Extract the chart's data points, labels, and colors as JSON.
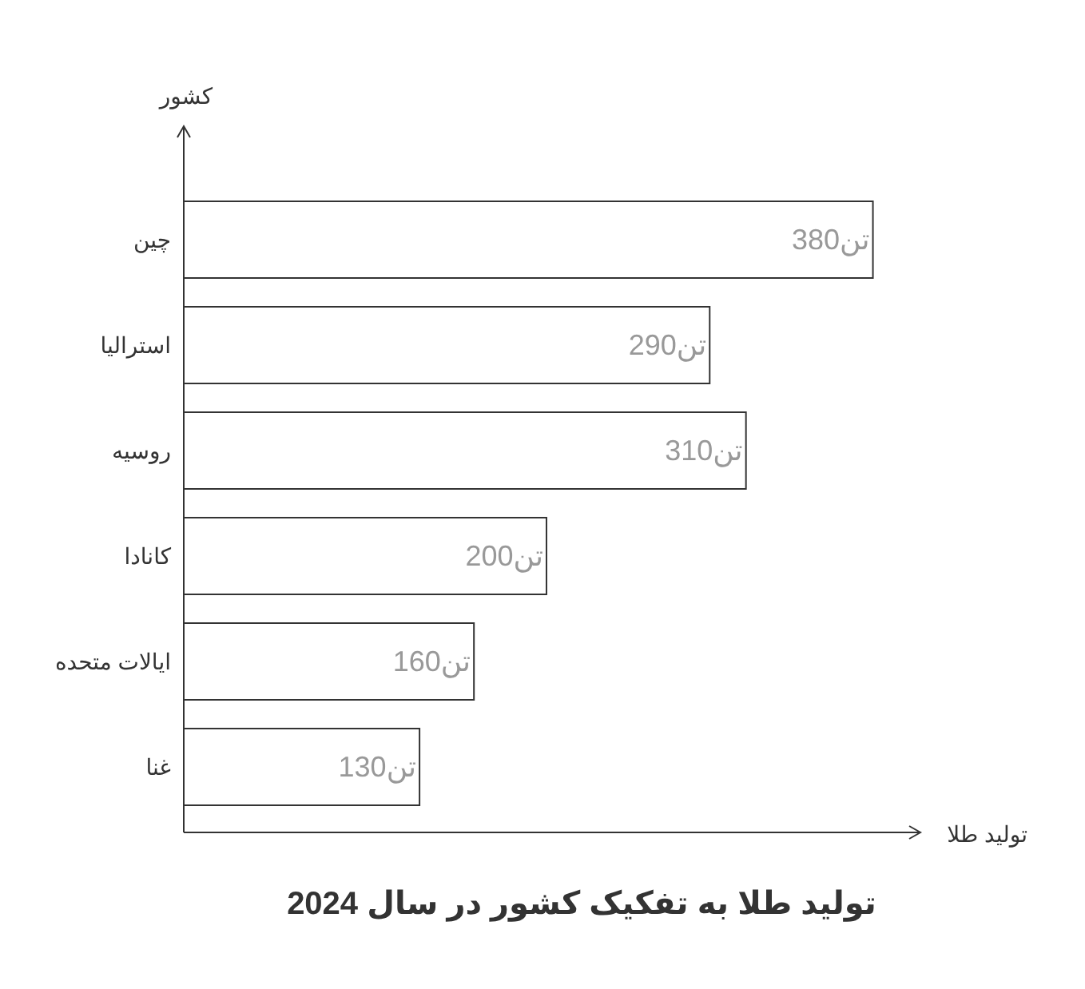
{
  "chart_data": {
    "type": "bar",
    "orientation": "horizontal",
    "title": "تولید طلا به تفکیک کشور در سال 2024",
    "xlabel": "تولید طلا",
    "ylabel": "کشور",
    "categories": [
      "چین",
      "استرالیا",
      "روسیه",
      "کانادا",
      "ایالات متحده",
      "غنا"
    ],
    "values": [
      380,
      290,
      310,
      200,
      160,
      130
    ],
    "value_labels": [
      "380تن",
      "290تن",
      "310تن",
      "200تن",
      "160تن",
      "130تن"
    ],
    "color": "#ffffff",
    "tick_labels": "y"
  }
}
